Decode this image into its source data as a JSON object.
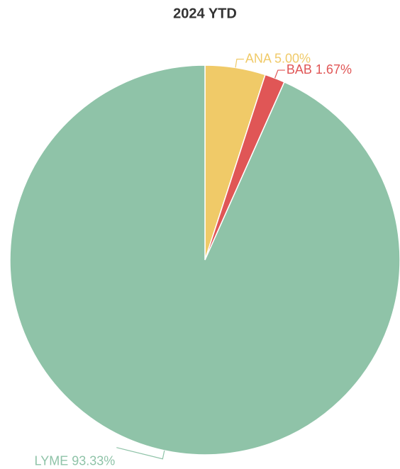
{
  "chart_data": {
    "type": "pie",
    "title": "2024 YTD",
    "categories": [
      "ANA",
      "BAB",
      "LYME"
    ],
    "values": [
      5.0,
      1.67,
      93.33
    ],
    "value_labels": [
      "5.00%",
      "1.67%",
      "93.33%"
    ],
    "colors": [
      "#f0ca68",
      "#e05656",
      "#8fc3a8"
    ]
  }
}
